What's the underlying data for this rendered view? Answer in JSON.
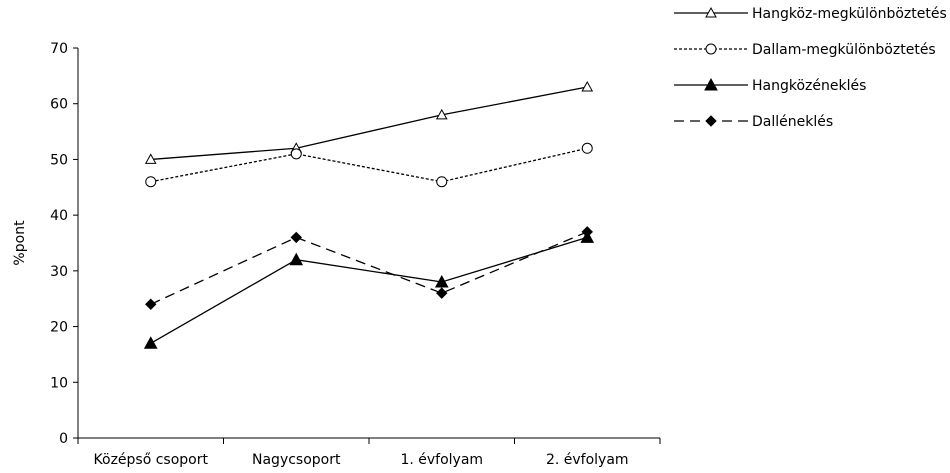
{
  "chart_data": {
    "type": "line",
    "title": "",
    "xlabel": "",
    "ylabel": "%pont",
    "ylim": [
      0,
      70
    ],
    "yticks": [
      0,
      10,
      20,
      30,
      40,
      50,
      60,
      70
    ],
    "categories": [
      "Középső csoport",
      "Nagycsoport",
      "1. évfolyam",
      "2. évfolyam"
    ],
    "grid": false,
    "legend_position": "top-right",
    "series": [
      {
        "name": "Hangköz-megkülönböztetés",
        "values": [
          50,
          52,
          58,
          63
        ],
        "line_style": "solid",
        "marker": "open-triangle",
        "color": "#000000"
      },
      {
        "name": "Dallam-megkülönböztetés",
        "values": [
          46,
          51,
          46,
          52
        ],
        "line_style": "dotted",
        "marker": "open-circle",
        "color": "#000000"
      },
      {
        "name": "Hangközéneklés",
        "values": [
          17,
          32,
          28,
          36
        ],
        "line_style": "solid",
        "marker": "filled-triangle",
        "color": "#000000"
      },
      {
        "name": "Dalléneklés",
        "values": [
          24,
          36,
          26,
          37
        ],
        "line_style": "dashed",
        "marker": "filled-diamond",
        "color": "#000000"
      }
    ]
  }
}
